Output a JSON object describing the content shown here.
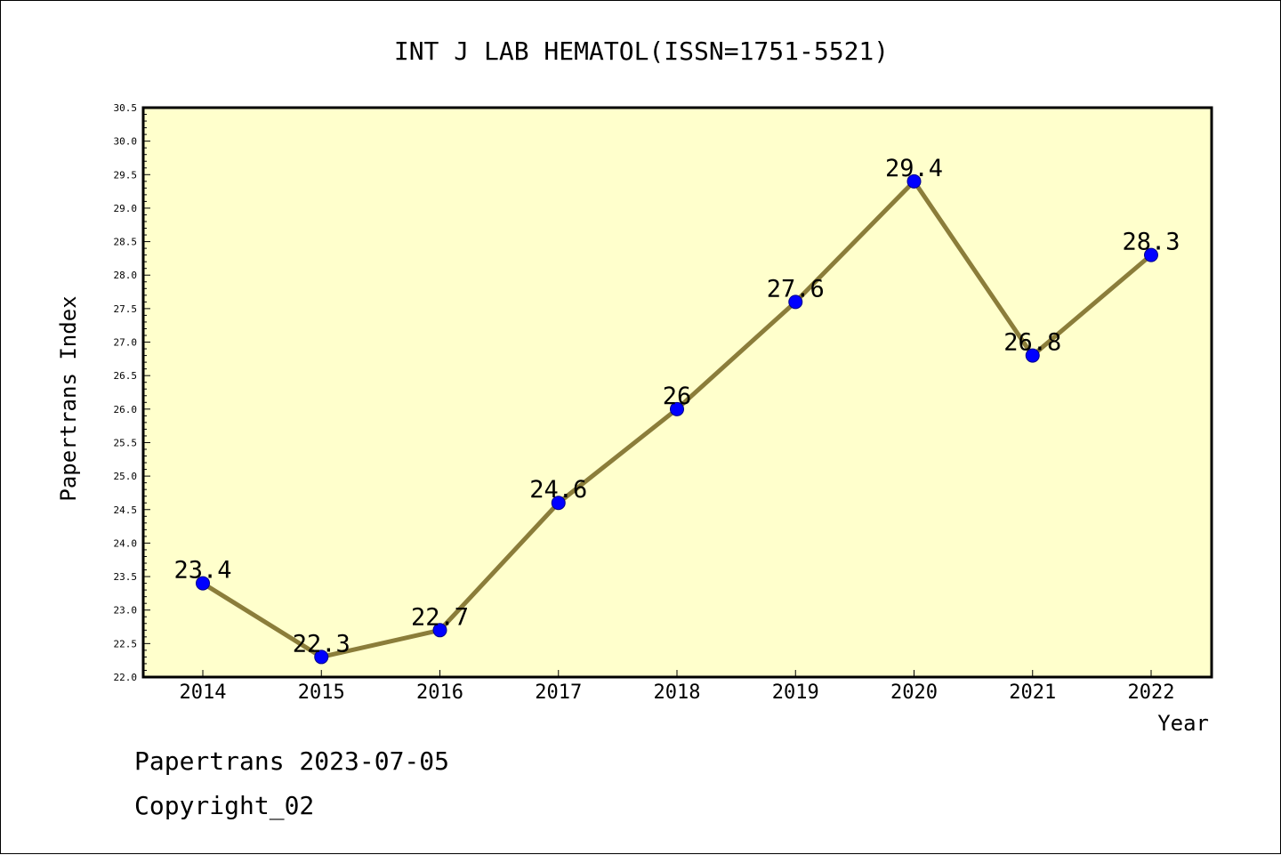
{
  "colors": {
    "plot_background": "#FFFFCC",
    "line": "#8B7D3A",
    "marker": "#0000FF",
    "marker_stroke": "#00008B",
    "axis": "#000000"
  },
  "footer": {
    "line1": "Papertrans 2023-07-05",
    "line2": "Copyright_02"
  },
  "chart_data": {
    "type": "line",
    "title": "INT J LAB HEMATOL(ISSN=1751-5521)",
    "xlabel": "Year",
    "ylabel": "Papertrans Index",
    "categories": [
      "2014",
      "2015",
      "2016",
      "2017",
      "2018",
      "2019",
      "2020",
      "2021",
      "2022"
    ],
    "series": [
      {
        "values": [
          23.4,
          22.3,
          22.7,
          24.6,
          26.0,
          27.6,
          29.4,
          26.8,
          28.3
        ],
        "labels": [
          "23.4",
          "22.3",
          "22.7",
          "24.6",
          "26",
          "27.6",
          "29.4",
          "26.8",
          "28.3"
        ]
      }
    ],
    "ylim": [
      22.0,
      30.5
    ],
    "yticks": [
      "22.0",
      "22.5",
      "23.0",
      "23.5",
      "24.0",
      "24.5",
      "25.0",
      "25.5",
      "26.0",
      "26.5",
      "27.0",
      "27.5",
      "28.0",
      "28.5",
      "29.0",
      "29.5",
      "30.0",
      "30.5"
    ],
    "grid": false,
    "legend": "none"
  }
}
